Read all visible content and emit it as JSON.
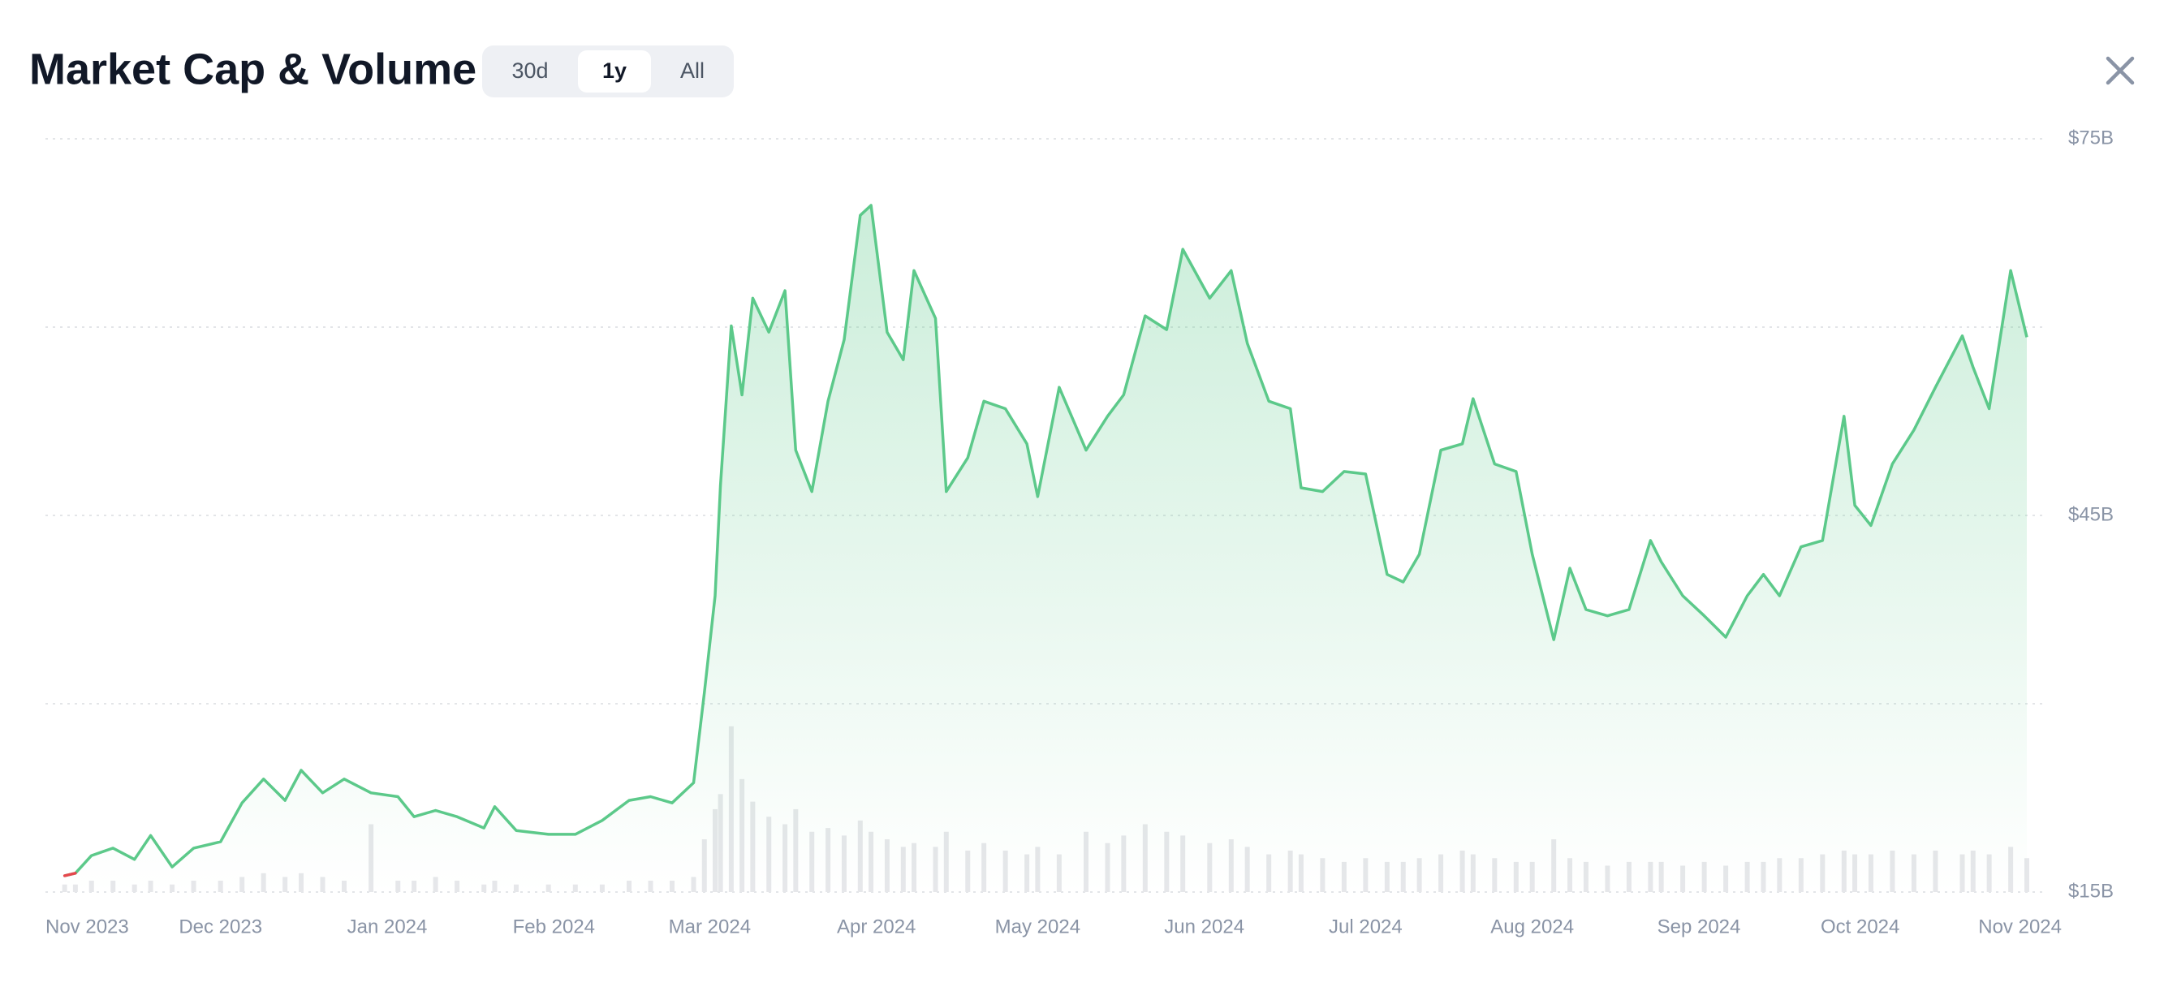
{
  "header": {
    "title": "Market Cap & Volume",
    "ranges": [
      "30d",
      "1y",
      "All"
    ],
    "selected_range_index": 1
  },
  "chart_data": {
    "type": "line",
    "x": [
      1,
      3,
      6,
      10,
      14,
      17,
      21,
      25,
      30,
      34,
      38,
      42,
      45,
      49,
      53,
      58,
      63,
      66,
      70,
      74,
      79,
      81,
      85,
      91,
      96,
      101,
      106,
      110,
      114,
      118,
      120,
      122,
      123,
      125,
      127,
      129,
      132,
      135,
      137,
      140,
      143,
      146,
      149,
      151,
      154,
      157,
      159,
      163,
      165,
      169,
      172,
      176,
      180,
      182,
      186,
      191,
      195,
      198,
      202,
      206,
      209,
      214,
      218,
      221,
      225,
      229,
      231,
      235,
      239,
      243,
      247,
      250,
      253,
      257,
      261,
      263,
      267,
      271,
      274,
      278,
      281,
      284,
      288,
      292,
      296,
      298,
      302,
      306,
      310,
      314,
      317,
      320,
      324,
      328,
      332,
      334,
      337,
      341,
      345,
      349,
      354,
      356,
      359,
      363,
      366
    ],
    "series": [
      {
        "color": "#5cc98a",
        "start_color": "#e5484d",
        "values": [
          16.3,
          16.5,
          17.9,
          18.5,
          17.6,
          19.5,
          17.0,
          18.5,
          19.0,
          22.1,
          24.0,
          22.3,
          24.7,
          22.9,
          24.0,
          22.9,
          22.6,
          21.0,
          21.5,
          21.0,
          20.1,
          21.8,
          19.9,
          19.6,
          19.6,
          20.7,
          22.3,
          22.6,
          22.1,
          23.7,
          30.9,
          38.6,
          47.4,
          60.1,
          54.6,
          62.3,
          59.6,
          62.9,
          50.2,
          46.9,
          54.1,
          59.0,
          68.9,
          69.7,
          59.6,
          57.4,
          64.5,
          60.7,
          46.9,
          49.6,
          54.1,
          53.5,
          50.7,
          46.5,
          55.2,
          50.2,
          52.9,
          54.6,
          60.9,
          59.8,
          66.2,
          62.3,
          64.5,
          58.7,
          54.1,
          53.5,
          47.2,
          46.9,
          48.5,
          48.3,
          40.3,
          39.7,
          41.9,
          50.2,
          50.7,
          54.3,
          49.1,
          48.5,
          41.9,
          35.1,
          40.8,
          37.5,
          37.0,
          37.5,
          43.0,
          41.3,
          38.6,
          37.0,
          35.3,
          38.6,
          40.3,
          38.6,
          42.5,
          43.0,
          52.9,
          45.8,
          44.2,
          49.1,
          51.8,
          55.2,
          59.3,
          56.8,
          53.5,
          64.5,
          59.2
        ]
      },
      {
        "type": "bar",
        "axis": "y2",
        "color": "#e6e7ea",
        "values": [
          0.2,
          0.2,
          0.3,
          0.3,
          0.2,
          0.3,
          0.2,
          0.3,
          0.3,
          0.4,
          0.5,
          0.4,
          0.5,
          0.4,
          0.3,
          1.8,
          0.3,
          0.3,
          0.4,
          0.3,
          0.2,
          0.3,
          0.2,
          0.2,
          0.2,
          0.2,
          0.3,
          0.3,
          0.3,
          0.4,
          1.4,
          2.2,
          2.6,
          4.4,
          3.0,
          2.4,
          2.0,
          1.8,
          2.2,
          1.6,
          1.7,
          1.5,
          1.9,
          1.6,
          1.4,
          1.2,
          1.3,
          1.2,
          1.6,
          1.1,
          1.3,
          1.1,
          1.0,
          1.2,
          1.0,
          1.6,
          1.3,
          1.5,
          1.8,
          1.6,
          1.5,
          1.3,
          1.4,
          1.2,
          1.0,
          1.1,
          1.0,
          0.9,
          0.8,
          0.9,
          0.8,
          0.8,
          0.9,
          1.0,
          1.1,
          1.0,
          0.9,
          0.8,
          0.8,
          1.4,
          0.9,
          0.8,
          0.7,
          0.8,
          0.8,
          0.8,
          0.7,
          0.8,
          0.7,
          0.8,
          0.8,
          0.9,
          0.9,
          1.0,
          1.1,
          1.0,
          1.0,
          1.1,
          1.0,
          1.1,
          1.0,
          1.1,
          1.0,
          1.2,
          0.9
        ]
      }
    ],
    "xlim": [
      0,
      366
    ],
    "xticks": [
      {
        "value": 0,
        "label": "Nov 2023"
      },
      {
        "value": 30,
        "label": "Dec 2023"
      },
      {
        "value": 61,
        "label": "Jan 2024"
      },
      {
        "value": 92,
        "label": "Feb 2024"
      },
      {
        "value": 121,
        "label": "Mar 2024"
      },
      {
        "value": 152,
        "label": "Apr 2024"
      },
      {
        "value": 182,
        "label": "May 2024"
      },
      {
        "value": 213,
        "label": "Jun 2024"
      },
      {
        "value": 243,
        "label": "Jul 2024"
      },
      {
        "value": 274,
        "label": "Aug 2024"
      },
      {
        "value": 305,
        "label": "Sep 2024"
      },
      {
        "value": 335,
        "label": "Oct 2024"
      },
      {
        "value": 366,
        "label": "Nov 2024"
      }
    ],
    "ylim": [
      15,
      75
    ],
    "yticks": [
      {
        "value": 75,
        "label": "$75B"
      },
      {
        "value": 45,
        "label": "$45B"
      },
      {
        "value": 15,
        "label": "$15B"
      }
    ],
    "ygrid": [
      15,
      30,
      45,
      60,
      75
    ],
    "y2lim": [
      0,
      20
    ],
    "grid": true
  }
}
